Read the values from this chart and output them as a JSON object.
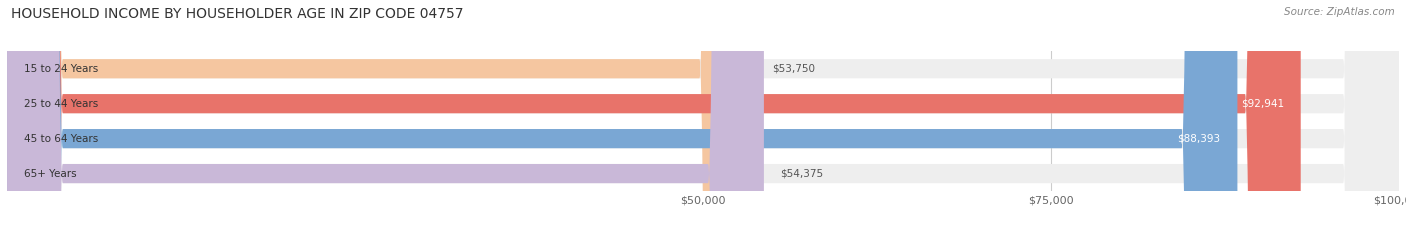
{
  "title": "HOUSEHOLD INCOME BY HOUSEHOLDER AGE IN ZIP CODE 04757",
  "source": "Source: ZipAtlas.com",
  "categories": [
    "15 to 24 Years",
    "25 to 44 Years",
    "45 to 64 Years",
    "65+ Years"
  ],
  "values": [
    53750,
    92941,
    88393,
    54375
  ],
  "bar_colors": [
    "#f5c6a0",
    "#e8736a",
    "#7aa7d4",
    "#c9b8d8"
  ],
  "value_labels": [
    "$53,750",
    "$92,941",
    "$88,393",
    "$54,375"
  ],
  "x_min": 0,
  "x_max": 100000,
  "x_ticks": [
    50000,
    75000,
    100000
  ],
  "x_tick_labels": [
    "$50,000",
    "$75,000",
    "$100,000"
  ],
  "figure_bg": "#ffffff",
  "bar_height": 0.55
}
